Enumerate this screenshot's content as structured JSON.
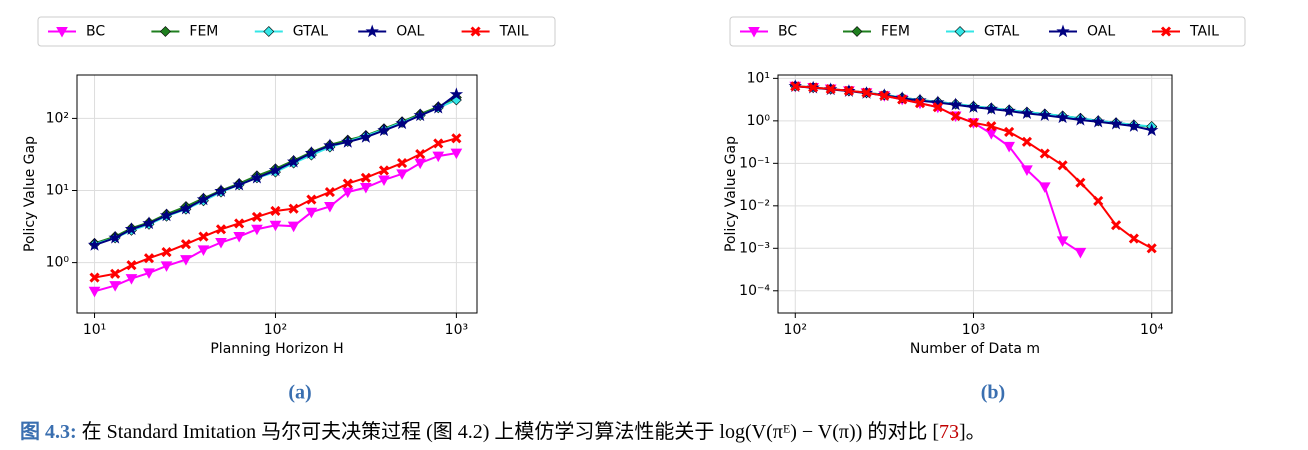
{
  "chart_data": [
    {
      "type": "line",
      "label": "(a)",
      "xlabel": "Planning Horizon H",
      "ylabel": "Policy Value Gap",
      "xscale": "log",
      "yscale": "log",
      "xlim": [
        8,
        1300
      ],
      "ylim": [
        0.2,
        400
      ],
      "xticks": [
        {
          "value": 10,
          "label": "10¹"
        },
        {
          "value": 100,
          "label": "10²"
        },
        {
          "value": 1000,
          "label": "10³"
        }
      ],
      "yticks": [
        {
          "value": 1,
          "label": "10⁰"
        },
        {
          "value": 10,
          "label": "10¹"
        },
        {
          "value": 100,
          "label": "10²"
        }
      ],
      "grid": true,
      "legend": "top",
      "x": [
        10,
        13,
        16,
        20,
        25,
        32,
        40,
        50,
        63,
        79,
        100,
        126,
        158,
        200,
        251,
        316,
        398,
        501,
        631,
        794,
        1000
      ],
      "series": [
        {
          "name": "BC",
          "color": "#ff00ff",
          "marker": "tri",
          "values": [
            0.4,
            0.48,
            0.6,
            0.72,
            0.9,
            1.1,
            1.5,
            1.9,
            2.3,
            2.9,
            3.3,
            3.2,
            5,
            6,
            9.5,
            11,
            14,
            17,
            24,
            30,
            33
          ]
        },
        {
          "name": "FEM",
          "color": "#1f7f1f",
          "marker": "diamond",
          "values": [
            1.85,
            2.3,
            3.0,
            3.6,
            4.7,
            6,
            7.8,
            10,
            12.5,
            16,
            20,
            26,
            34,
            43,
            50,
            58,
            72,
            90,
            115,
            145,
            195
          ]
        },
        {
          "name": "GTAL",
          "color": "#33e6e6",
          "marker": "diamond",
          "values": [
            1.8,
            2.2,
            2.8,
            3.4,
            4.4,
            5.5,
            7.2,
            9.5,
            12,
            15,
            18,
            24,
            31,
            40,
            48,
            57,
            70,
            88,
            110,
            140,
            180
          ]
        },
        {
          "name": "OAL",
          "color": "#000080",
          "marker": "star",
          "values": [
            1.75,
            2.2,
            2.9,
            3.5,
            4.5,
            5.6,
            7.5,
            9.8,
            12,
            15,
            19,
            25,
            33,
            42,
            47,
            55,
            68,
            85,
            110,
            140,
            215
          ]
        },
        {
          "name": "TAIL",
          "color": "#ff0000",
          "marker": "x",
          "values": [
            0.62,
            0.7,
            0.92,
            1.15,
            1.4,
            1.8,
            2.3,
            2.9,
            3.5,
            4.3,
            5.2,
            5.6,
            7.5,
            9.5,
            12.5,
            15,
            19,
            24,
            32,
            45,
            53
          ]
        }
      ]
    },
    {
      "type": "line",
      "label": "(b)",
      "xlabel": "Number of Data m",
      "ylabel": "Policy Value Gap",
      "xscale": "log",
      "yscale": "log",
      "xlim": [
        80,
        13000
      ],
      "ylim": [
        3e-05,
        12
      ],
      "xticks": [
        {
          "value": 100,
          "label": "10²"
        },
        {
          "value": 1000,
          "label": "10³"
        },
        {
          "value": 10000,
          "label": "10⁴"
        }
      ],
      "yticks": [
        {
          "value": 0.0001,
          "label": "10⁻⁴"
        },
        {
          "value": 0.001,
          "label": "10⁻³"
        },
        {
          "value": 0.01,
          "label": "10⁻²"
        },
        {
          "value": 0.1,
          "label": "10⁻¹"
        },
        {
          "value": 1,
          "label": "10⁰"
        },
        {
          "value": 10,
          "label": "10¹"
        }
      ],
      "grid": true,
      "legend": "top",
      "x": [
        100,
        126,
        158,
        200,
        251,
        316,
        398,
        501,
        631,
        794,
        1000,
        1259,
        1585,
        1995,
        2512,
        3162,
        3981,
        5012,
        6310,
        7943,
        10000
      ],
      "series": [
        {
          "name": "BC",
          "color": "#ff00ff",
          "marker": "tri",
          "values": [
            6.5,
            6.1,
            5.6,
            5.1,
            4.6,
            3.9,
            3.2,
            2.6,
            2.1,
            1.3,
            0.9,
            0.5,
            0.25,
            0.07,
            0.028,
            0.0015,
            0.0008,
            null,
            null,
            null,
            null
          ]
        },
        {
          "name": "FEM",
          "color": "#1f7f1f",
          "marker": "diamond",
          "values": [
            6.6,
            6.1,
            5.6,
            5.1,
            4.6,
            4.1,
            3.5,
            3.1,
            2.8,
            2.5,
            2.2,
            2.0,
            1.8,
            1.6,
            1.45,
            1.3,
            1.15,
            1.0,
            0.9,
            0.8,
            0.72
          ]
        },
        {
          "name": "GTAL",
          "color": "#33e6e6",
          "marker": "diamond",
          "values": [
            6.6,
            6.1,
            5.6,
            5.1,
            4.6,
            4.1,
            3.5,
            3.1,
            2.8,
            2.5,
            2.2,
            2.0,
            1.8,
            1.6,
            1.45,
            1.3,
            1.15,
            1.0,
            0.9,
            0.8,
            0.74
          ]
        },
        {
          "name": "OAL",
          "color": "#000080",
          "marker": "star",
          "values": [
            6.5,
            6.0,
            5.5,
            5.0,
            4.5,
            4.0,
            3.4,
            3.0,
            2.7,
            2.4,
            2.1,
            1.9,
            1.7,
            1.5,
            1.35,
            1.2,
            1.05,
            0.95,
            0.85,
            0.75,
            0.6
          ]
        },
        {
          "name": "TAIL",
          "color": "#ff0000",
          "marker": "x",
          "values": [
            6.5,
            6.1,
            5.6,
            5.1,
            4.6,
            3.9,
            3.2,
            2.6,
            2.1,
            1.3,
            0.9,
            0.75,
            0.55,
            0.32,
            0.17,
            0.09,
            0.035,
            0.013,
            0.0035,
            0.0017,
            0.001
          ]
        }
      ]
    }
  ],
  "caption": {
    "label": "图 4.3:",
    "text": "在 Standard Imitation 马尔可夫决策过程 (图 4.2) 上模仿学习算法性能关于 log(V(πᴱ) − V(π)) 的对比 [",
    "ref": "73",
    "end": "]。"
  }
}
